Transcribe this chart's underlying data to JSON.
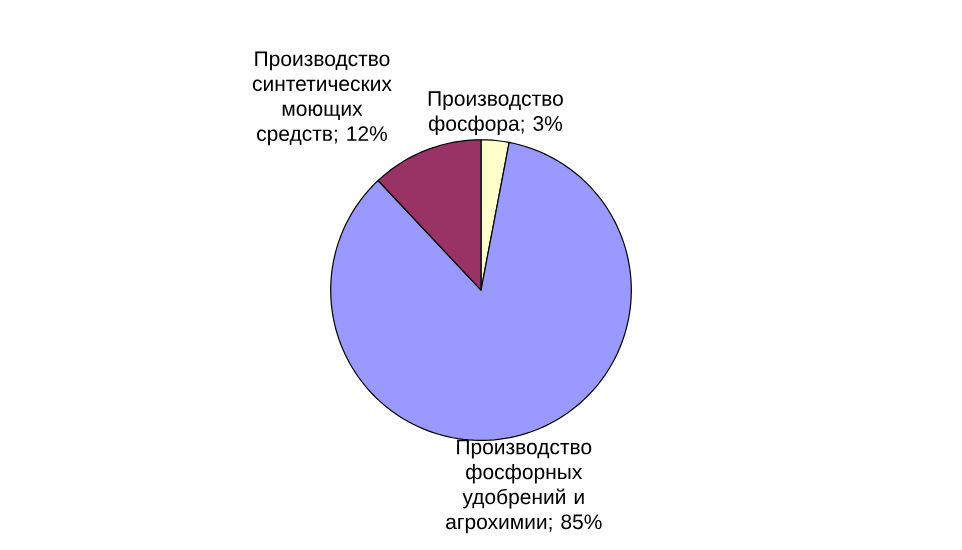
{
  "chart_data": {
    "type": "pie",
    "categories": [
      "Производство фосфора",
      "Производство фосфорных удобрений и агрохимии",
      "Производство синтетических моющих средств"
    ],
    "values": [
      3,
      85,
      12
    ],
    "colors": [
      "#ffffcc",
      "#9999ff",
      "#993366"
    ],
    "value_labels": [
      "; 3%",
      "; 85%",
      "; 12%"
    ]
  }
}
